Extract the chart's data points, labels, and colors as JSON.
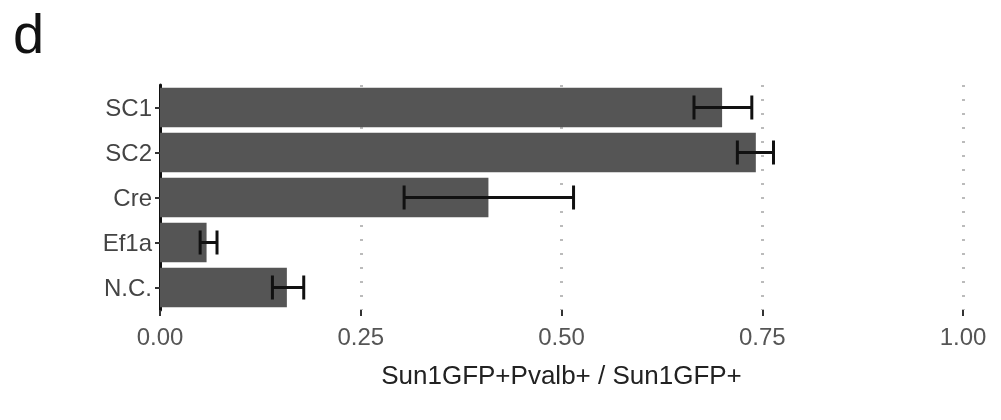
{
  "chart_data": {
    "type": "bar",
    "title": "d",
    "orientation": "horizontal",
    "categories": [
      "SC1",
      "SC2",
      "Cre",
      "Ef1a",
      "N.C."
    ],
    "values": [
      0.7,
      0.742,
      0.409,
      0.058,
      0.158
    ],
    "errors": [
      [
        0.665,
        0.737
      ],
      [
        0.719,
        0.764
      ],
      [
        0.304,
        0.515
      ],
      [
        0.05,
        0.071
      ],
      [
        0.14,
        0.179
      ]
    ],
    "color": "#555555",
    "xlabel": "Sun1GFP+Pvalb+ / Sun1GFP+",
    "xlim": [
      0,
      1
    ],
    "xticks": [
      {
        "value": 0,
        "label": "0.00"
      },
      0.25,
      {
        "value": 0.5,
        "label": "0.50"
      },
      0.75,
      {
        "value": 1,
        "label": "1.00"
      }
    ],
    "grid": "x"
  }
}
